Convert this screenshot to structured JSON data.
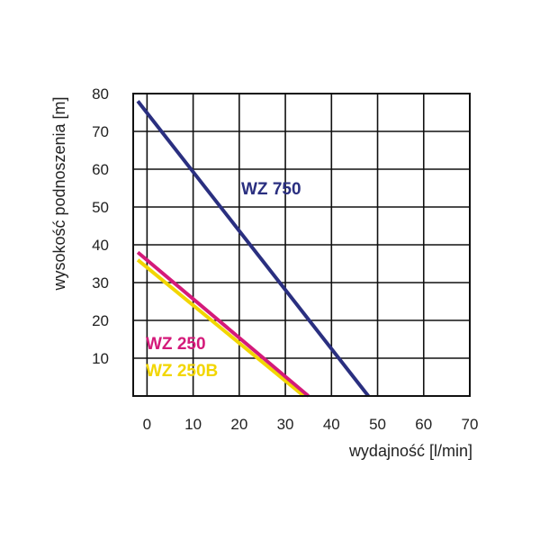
{
  "chart_data": {
    "type": "line",
    "xlabel": "wydajność [l/min]",
    "ylabel": "wysokość podnoszenia [m]",
    "xlim": [
      -3,
      70
    ],
    "ylim": [
      0,
      80
    ],
    "x_ticks": [
      0,
      10,
      20,
      30,
      40,
      50,
      60,
      70
    ],
    "y_ticks": [
      10,
      20,
      30,
      40,
      50,
      60,
      70,
      80
    ],
    "grid": true,
    "legend": "inline labels",
    "series": [
      {
        "name": "WZ 750",
        "color": "#2a2f80",
        "x": [
          -2,
          48
        ],
        "y": [
          78,
          0
        ]
      },
      {
        "name": "WZ 250",
        "color": "#d41a7a",
        "x": [
          -2,
          35
        ],
        "y": [
          38,
          0
        ]
      },
      {
        "name": "WZ 250B",
        "color": "#f2d600",
        "x": [
          -2,
          34
        ],
        "y": [
          36,
          0
        ]
      }
    ]
  }
}
